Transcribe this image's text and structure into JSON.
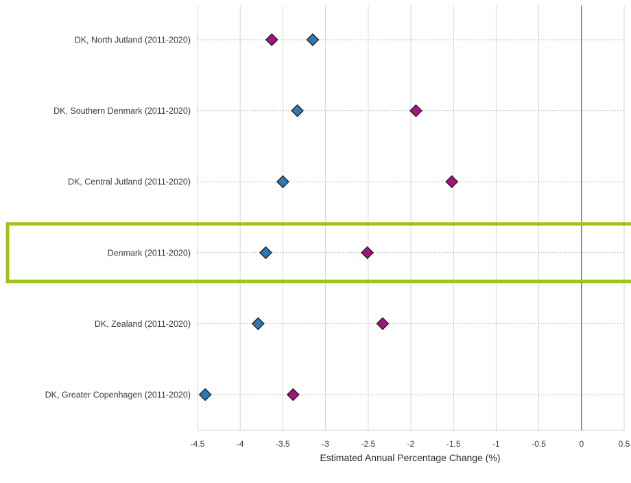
{
  "chart_data": {
    "type": "scatter",
    "xlabel": "Estimated Annual Percentage Change (%)",
    "xlim": [
      -4.5,
      0.5
    ],
    "xticks": [
      "-4.5",
      "-4",
      "-3.5",
      "-3",
      "-2.5",
      "-2",
      "-1.5",
      "-1",
      "-0.5",
      "0",
      "0.5"
    ],
    "grid": true,
    "categories": [
      "DK, North Jutland (2011-2020)",
      "DK, Southern Denmark (2011-2020)",
      "DK, Central Jutland (2011-2020)",
      "Denmark (2011-2020)",
      "DK, Zealand (2011-2020)",
      "DK, Greater Copenhagen (2011-2020)"
    ],
    "highlighted_category": "Denmark (2011-2020)",
    "series": [
      {
        "color": "#2e78b4",
        "values": [
          -3.15,
          -3.33,
          -3.5,
          -3.7,
          -3.79,
          -4.41
        ]
      },
      {
        "color": "#a8127e",
        "values": [
          -3.63,
          -1.94,
          -1.52,
          -2.51,
          -2.33,
          -3.38
        ]
      }
    ],
    "highlight_color": "#9dc41a"
  }
}
